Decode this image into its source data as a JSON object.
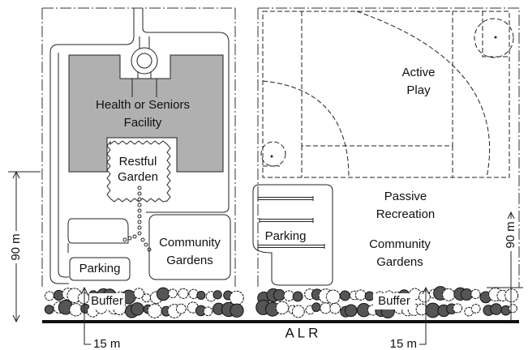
{
  "labels": {
    "health_facility": [
      "Health or Seniors",
      "Facility"
    ],
    "restful_garden": [
      "Restful",
      "Garden"
    ],
    "community_gardens_left": [
      "Community",
      "Gardens"
    ],
    "parking_left": "Parking",
    "active_play": [
      "Active",
      "Play"
    ],
    "passive_recreation": [
      "Passive",
      "Recreation"
    ],
    "community_gardens_right": [
      "Community",
      "Gardens"
    ],
    "parking_right": "Parking",
    "buffer_left": "Buffer",
    "buffer_right": "Buffer",
    "alr": "A L R",
    "dimension_left_height": "90 m",
    "dimension_right_height": "90 m",
    "dimension_left_buffer": "15 m",
    "dimension_right_buffer": "15 m"
  }
}
